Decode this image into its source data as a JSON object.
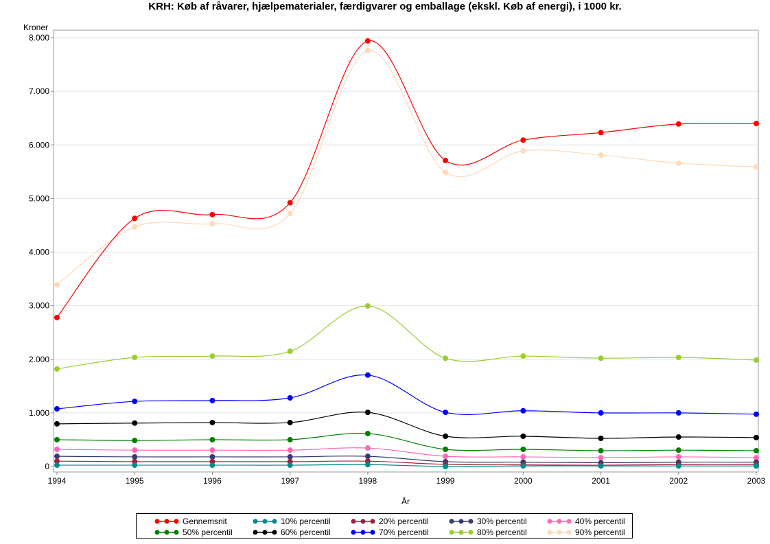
{
  "chart_data": {
    "type": "line",
    "title": "KRH: Køb af råvarer, hjælpematerialer, færdigvarer og emballage (ekskl. Køb af energi), i 1000 kr.",
    "xlabel": "År",
    "ylabel": "Kroner",
    "x": [
      1994,
      1995,
      1996,
      1997,
      1998,
      1999,
      2000,
      2001,
      2002,
      2003
    ],
    "xlim": [
      1994,
      2003
    ],
    "ylim": [
      0,
      8000
    ],
    "yticks": [
      0,
      1000,
      2000,
      3000,
      4000,
      5000,
      6000,
      7000,
      8000
    ],
    "ytick_labels": [
      "0",
      "1.000",
      "2.000",
      "3.000",
      "4.000",
      "5.000",
      "6.000",
      "7.000",
      "8.000"
    ],
    "grid": "horizontal",
    "legend_position": "bottom",
    "series": [
      {
        "name": "Gennemsnit",
        "color": "#ff0000",
        "values": [
          2780,
          4630,
          4700,
          4920,
          7940,
          5710,
          6090,
          6230,
          6390,
          6400
        ]
      },
      {
        "name": "10% percentil",
        "color": "#008b8b",
        "values": [
          25,
          25,
          25,
          25,
          35,
          0,
          10,
          10,
          10,
          10
        ]
      },
      {
        "name": "20% percentil",
        "color": "#a0203c",
        "values": [
          100,
          90,
          90,
          90,
          100,
          40,
          30,
          25,
          35,
          35
        ]
      },
      {
        "name": "30% percentil",
        "color": "#3a3a70",
        "values": [
          190,
          180,
          180,
          180,
          190,
          90,
          80,
          70,
          80,
          80
        ]
      },
      {
        "name": "40% percentil",
        "color": "#ff69b4",
        "values": [
          320,
          305,
          305,
          305,
          345,
          190,
          180,
          165,
          180,
          165
        ]
      },
      {
        "name": "50% percentil",
        "color": "#008000",
        "values": [
          500,
          485,
          500,
          500,
          615,
          320,
          320,
          295,
          305,
          295
        ]
      },
      {
        "name": "60% percentil",
        "color": "#000000",
        "values": [
          795,
          810,
          820,
          820,
          1010,
          565,
          565,
          525,
          550,
          540
        ]
      },
      {
        "name": "70% percentil",
        "color": "#0000ff",
        "values": [
          1075,
          1215,
          1230,
          1280,
          1705,
          1010,
          1040,
          1000,
          1000,
          975
        ]
      },
      {
        "name": "80% percentil",
        "color": "#9acd32",
        "values": [
          1820,
          2035,
          2060,
          2150,
          2995,
          2020,
          2060,
          2020,
          2035,
          1985
        ]
      },
      {
        "name": "90% percentil",
        "color": "#ffdab9",
        "values": [
          3390,
          4470,
          4530,
          4720,
          7760,
          5490,
          5890,
          5810,
          5660,
          5590
        ]
      }
    ]
  }
}
